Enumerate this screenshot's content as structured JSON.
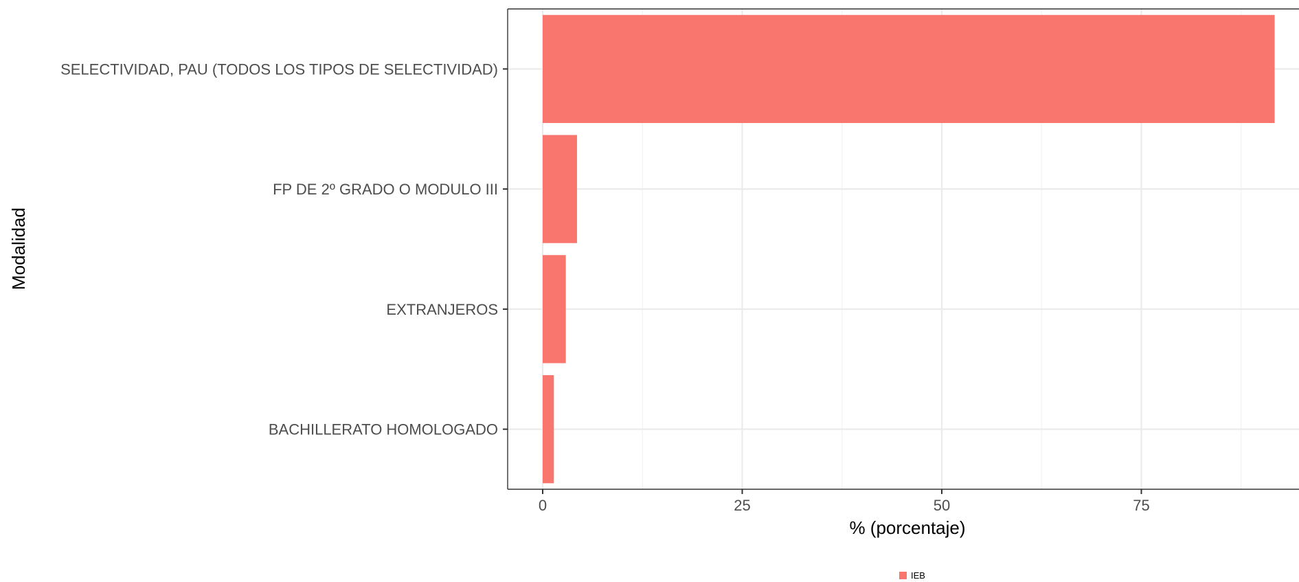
{
  "chart_data": {
    "type": "bar",
    "orientation": "horizontal",
    "categories": [
      "SELECTIVIDAD, PAU (TODOS LOS TIPOS DE SELECTIVIDAD)",
      "FP DE 2º GRADO O MODULO III",
      "EXTRANJEROS",
      "BACHILLERATO HOMOLOGADO"
    ],
    "series": [
      {
        "name": "IEB",
        "values": [
          91.7,
          4.3,
          2.9,
          1.4
        ],
        "color": "#f8766d"
      }
    ],
    "xlabel": "% (porcentaje)",
    "ylabel": "Modalidad",
    "xlim": [
      0,
      95
    ],
    "xticks": [
      0,
      25,
      50,
      75
    ],
    "xtick_labels": [
      "0",
      "25",
      "50",
      "75"
    ],
    "grid": true,
    "legend": {
      "position": "bottom",
      "entries": [
        "IEB"
      ]
    }
  }
}
